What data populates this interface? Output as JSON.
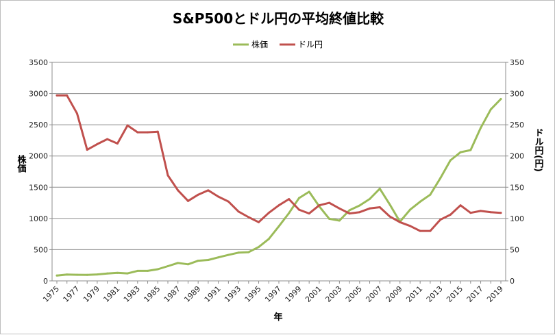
{
  "chart_data": {
    "type": "line",
    "title": "S&P500とドル円の平均終値比較",
    "xlabel": "年",
    "ylabel": "株価",
    "ylabel_right": "ドル円(円)",
    "ylim": [
      0,
      3500
    ],
    "ylim_right": [
      0,
      350
    ],
    "yticks": [
      "0",
      "500",
      "1000",
      "1500",
      "2000",
      "2500",
      "3000",
      "3500"
    ],
    "yticks_right": [
      "0",
      "50",
      "100",
      "150",
      "200",
      "250",
      "300",
      "350"
    ],
    "legend_position": "top-center",
    "grid": true,
    "x": [
      1975,
      1976,
      1977,
      1978,
      1979,
      1980,
      1981,
      1982,
      1983,
      1984,
      1985,
      1986,
      1987,
      1988,
      1989,
      1990,
      1991,
      1992,
      1993,
      1994,
      1995,
      1996,
      1997,
      1998,
      1999,
      2000,
      2001,
      2002,
      2003,
      2004,
      2005,
      2006,
      2007,
      2008,
      2009,
      2010,
      2011,
      2012,
      2013,
      2014,
      2015,
      2016,
      2017,
      2018,
      2019
    ],
    "xtick_labels": [
      "1975",
      "1977",
      "1979",
      "1981",
      "1983",
      "1985",
      "1987",
      "1989",
      "1991",
      "1993",
      "1995",
      "1997",
      "1999",
      "2001",
      "2003",
      "2005",
      "2007",
      "2009",
      "2011",
      "2013",
      "2015",
      "2017",
      "2019"
    ],
    "series": [
      {
        "name": "株価",
        "axis": "left",
        "color": "#9bbb59",
        "values": [
          86,
          102,
          98,
          96,
          103,
          119,
          128,
          120,
          160,
          160,
          187,
          236,
          287,
          266,
          323,
          335,
          376,
          416,
          452,
          460,
          542,
          671,
          874,
          1085,
          1327,
          1427,
          1194,
          994,
          965,
          1131,
          1207,
          1311,
          1477,
          1221,
          948,
          1140,
          1268,
          1380,
          1644,
          1931,
          2061,
          2095,
          2449,
          2746,
          2913
        ]
      },
      {
        "name": "ドル円",
        "axis": "right",
        "color": "#c0504d",
        "values": [
          297,
          297,
          268,
          210,
          219,
          227,
          220,
          249,
          238,
          238,
          239,
          169,
          145,
          128,
          138,
          145,
          135,
          127,
          111,
          102,
          94,
          109,
          121,
          131,
          114,
          108,
          121,
          125,
          116,
          108,
          110,
          116,
          118,
          103,
          94,
          88,
          80,
          80,
          98,
          106,
          121,
          109,
          112,
          110,
          109
        ]
      }
    ]
  }
}
